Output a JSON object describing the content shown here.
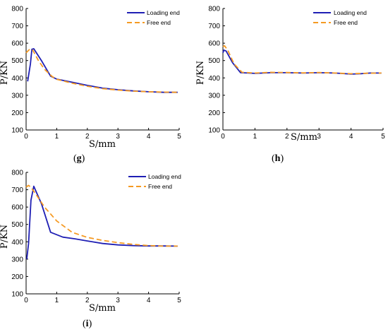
{
  "colors": {
    "loading": "#1f1fb4",
    "free": "#f59a23",
    "axis": "#000000"
  },
  "chart_data": [
    {
      "id": "g",
      "type": "line",
      "panel_label": "g",
      "xlabel": "S/mm",
      "ylabel": "P/KN",
      "xlim": [
        0,
        5
      ],
      "ylim": [
        100,
        800
      ],
      "xticks": [
        0,
        1,
        2,
        3,
        4,
        5
      ],
      "yticks": [
        100,
        200,
        300,
        400,
        500,
        600,
        700,
        800
      ],
      "legend_position": "top-right",
      "grid": false,
      "series": [
        {
          "name": "Loading end",
          "style": "solid",
          "x": [
            0.05,
            0.14,
            0.19,
            0.25,
            0.5,
            0.8,
            1.0,
            1.5,
            2.0,
            2.5,
            3.0,
            3.5,
            4.0,
            4.5,
            4.95
          ],
          "y": [
            380,
            480,
            565,
            568,
            500,
            410,
            393,
            375,
            357,
            341,
            332,
            325,
            320,
            317,
            317
          ]
        },
        {
          "name": "Free end",
          "style": "dashed",
          "x": [
            0.0,
            0.1,
            0.15,
            0.22,
            0.4,
            0.6,
            0.85,
            1.0,
            1.5,
            2.0,
            2.5,
            3.0,
            3.5,
            4.0,
            4.5,
            4.95
          ],
          "y": [
            545,
            562,
            567,
            560,
            500,
            450,
            408,
            392,
            370,
            352,
            338,
            330,
            324,
            320,
            318,
            317
          ]
        }
      ]
    },
    {
      "id": "h",
      "type": "line",
      "panel_label": "h",
      "xlabel": "S/mm",
      "ylabel": "P/KN",
      "xlim": [
        0,
        5
      ],
      "ylim": [
        100,
        800
      ],
      "xticks": [
        0,
        1,
        2,
        3,
        4,
        5
      ],
      "yticks": [
        100,
        200,
        300,
        400,
        500,
        600,
        700,
        800
      ],
      "legend_position": "top-right",
      "grid": false,
      "series": [
        {
          "name": "Loading end",
          "style": "solid",
          "x": [
            0.0,
            0.03,
            0.1,
            0.3,
            0.55,
            0.8,
            1.0,
            1.5,
            2.0,
            2.5,
            3.0,
            3.5,
            4.0,
            4.3,
            4.6,
            4.95
          ],
          "y": [
            545,
            560,
            555,
            488,
            430,
            428,
            426,
            430,
            430,
            428,
            430,
            428,
            422,
            424,
            428,
            428
          ]
        },
        {
          "name": "Free end",
          "style": "dashed",
          "x": [
            0.0,
            0.05,
            0.15,
            0.35,
            0.6,
            0.8,
            1.0,
            1.5,
            2.0,
            2.5,
            3.0,
            3.5,
            4.0,
            4.5,
            4.95
          ],
          "y": [
            580,
            585,
            560,
            480,
            432,
            430,
            428,
            432,
            431,
            429,
            431,
            428,
            424,
            427,
            428
          ]
        }
      ]
    },
    {
      "id": "i",
      "type": "line",
      "panel_label": "i",
      "xlabel": "S/mm",
      "ylabel": "P/KN",
      "xlim": [
        0,
        5
      ],
      "ylim": [
        100,
        800
      ],
      "xticks": [
        0,
        1,
        2,
        3,
        4,
        5
      ],
      "yticks": [
        100,
        200,
        300,
        400,
        500,
        600,
        700,
        800
      ],
      "legend_position": "top-right",
      "grid": false,
      "series": [
        {
          "name": "Loading end",
          "style": "solid",
          "x": [
            0.02,
            0.08,
            0.16,
            0.25,
            0.5,
            0.8,
            1.2,
            1.6,
            2.0,
            2.5,
            3.0,
            3.5,
            4.0,
            4.5,
            4.95
          ],
          "y": [
            300,
            390,
            640,
            720,
            620,
            455,
            427,
            417,
            405,
            390,
            382,
            378,
            376,
            376,
            375
          ]
        },
        {
          "name": "Free end",
          "style": "dashed",
          "x": [
            0.0,
            0.08,
            0.15,
            0.3,
            0.6,
            1.0,
            1.5,
            2.0,
            2.5,
            3.0,
            3.5,
            4.0,
            4.5,
            4.95
          ],
          "y": [
            715,
            725,
            715,
            680,
            600,
            520,
            455,
            425,
            408,
            395,
            385,
            378,
            375,
            375
          ]
        }
      ]
    }
  ]
}
